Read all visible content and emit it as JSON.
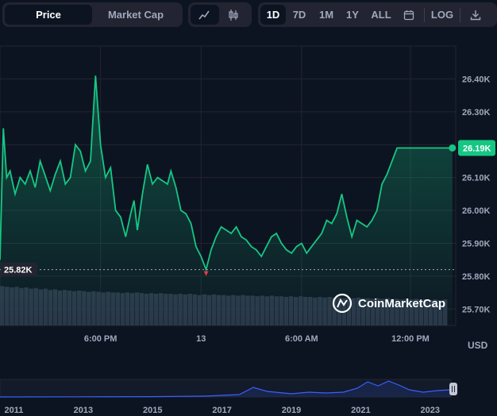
{
  "toolbar": {
    "metric_tabs": [
      {
        "label": "Price",
        "active": true
      },
      {
        "label": "Market Cap",
        "active": false
      }
    ],
    "chart_types": [
      {
        "icon": "line-chart-icon",
        "active": true
      },
      {
        "icon": "candlestick-icon",
        "active": false
      }
    ],
    "ranges": [
      {
        "label": "1D",
        "active": true
      },
      {
        "label": "7D",
        "active": false
      },
      {
        "label": "1M",
        "active": false
      },
      {
        "label": "1Y",
        "active": false
      },
      {
        "label": "ALL",
        "active": false
      }
    ],
    "calendar_icon": "calendar-icon",
    "log_label": "LOG",
    "download_icon": "download-icon"
  },
  "currency_label": "USD",
  "watermark": "CoinMarketCap",
  "colors": {
    "line": "#16c784",
    "volume": "#2b3548",
    "navigator": "#3861fb",
    "grid": "#222531",
    "low_marker": "#ea3943"
  },
  "chart_data": {
    "type": "line",
    "y_axis": {
      "ticks": [
        "26.40K",
        "26.30K",
        "26.20K",
        "26.10K",
        "26.00K",
        "25.90K",
        "25.80K",
        "25.70K"
      ],
      "tick_values": [
        26400,
        26300,
        26200,
        26100,
        26000,
        25900,
        25800,
        25700
      ],
      "range": [
        25650,
        26500
      ],
      "position": "right"
    },
    "x_axis": {
      "ticks": [
        "6:00 PM",
        "13",
        "6:00 AM",
        "12:00 PM"
      ],
      "tick_hours": [
        6,
        12,
        18,
        24.5
      ]
    },
    "x_range_hours": [
      0,
      27.2
    ],
    "current_price_label": "26.19K",
    "current_price": 26190,
    "min_price_label": "25.82K",
    "min_price": 25820,
    "series": [
      {
        "x": [
          0,
          0.2,
          0.4,
          0.6,
          0.9,
          1.2,
          1.5,
          1.8,
          2.1,
          2.4,
          2.8,
          3.0,
          3.3,
          3.6,
          3.9,
          4.2,
          4.5,
          4.8,
          5.1,
          5.4,
          5.7,
          6.0,
          6.3,
          6.6,
          6.9,
          7.2,
          7.5,
          7.8,
          8.0,
          8.2,
          8.5,
          8.8,
          9.1,
          9.4,
          9.7,
          10.0,
          10.2,
          10.5,
          10.8,
          11.1,
          11.4,
          11.7,
          12.0,
          12.3,
          12.6,
          12.9,
          13.2,
          13.5,
          13.8,
          14.1,
          14.4,
          14.7,
          15.0,
          15.3,
          15.6,
          15.9,
          16.2,
          16.5,
          16.8,
          17.1,
          17.4,
          17.7,
          18.0,
          18.3,
          18.6,
          18.9,
          19.2,
          19.5,
          19.8,
          20.1,
          20.4,
          20.7,
          21.0,
          21.3,
          21.6,
          21.9,
          22.2,
          22.5,
          22.8,
          23.1,
          23.4,
          23.7,
          24.0,
          24.3,
          24.6,
          24.9,
          25.2,
          25.5,
          25.8,
          26.1,
          26.4,
          26.7,
          27.0
        ],
        "values": [
          25850,
          26250,
          26100,
          26120,
          26050,
          26100,
          26080,
          26120,
          26070,
          26150,
          26090,
          26060,
          26110,
          26150,
          26080,
          26100,
          26200,
          26180,
          26120,
          26150,
          26410,
          26200,
          26100,
          26130,
          26000,
          25980,
          25920,
          25990,
          26030,
          25940,
          26050,
          26140,
          26080,
          26100,
          26090,
          26080,
          26120,
          26070,
          26000,
          25990,
          25960,
          25890,
          25860,
          25820,
          25880,
          25920,
          25950,
          25940,
          25930,
          25950,
          25920,
          25910,
          25890,
          25880,
          25860,
          25890,
          25920,
          25930,
          25900,
          25880,
          25870,
          25890,
          25900,
          25870,
          25890,
          25910,
          25930,
          25970,
          25960,
          25990,
          26050,
          25980,
          25920,
          25970,
          25960,
          25950,
          25970,
          26000,
          26080,
          26110,
          26150,
          26190,
          26190,
          26190,
          26190,
          26190,
          26190,
          26190,
          26190,
          26190,
          26190,
          26190,
          26190
        ]
      }
    ],
    "volume": {
      "values": [
        0.62,
        0.61,
        0.6,
        0.61,
        0.59,
        0.6,
        0.58,
        0.59,
        0.57,
        0.58,
        0.56,
        0.57,
        0.55,
        0.56,
        0.55,
        0.54,
        0.55,
        0.54,
        0.53,
        0.54,
        0.53,
        0.52,
        0.53,
        0.52,
        0.52,
        0.51,
        0.52,
        0.51,
        0.52,
        0.51,
        0.5,
        0.51,
        0.5,
        0.51,
        0.5,
        0.5,
        0.49,
        0.5,
        0.49,
        0.5,
        0.49,
        0.48,
        0.49,
        0.48,
        0.49,
        0.48,
        0.48,
        0.47,
        0.48,
        0.47,
        0.48,
        0.47,
        0.47,
        0.46,
        0.47,
        0.46,
        0.47,
        0.46,
        0.46,
        0.45,
        0.46,
        0.45,
        0.46,
        0.45,
        0.45,
        0.44,
        0.45,
        0.44,
        0.45,
        0.44,
        0.44,
        0.43,
        0.44,
        0.43,
        0.44,
        0.43,
        0.43,
        0.42,
        0.43,
        0.42,
        0.43,
        0.42,
        0.42,
        0.41,
        0.42,
        0.41,
        0.42,
        0.41,
        0.41,
        0.4,
        0.41,
        0.4,
        0.41
      ]
    },
    "navigator": {
      "ticks": [
        "2011",
        "2013",
        "2015",
        "2017",
        "2019",
        "2021",
        "2023"
      ],
      "tick_years": [
        2011,
        2013,
        2015,
        2017,
        2019,
        2021,
        2023
      ],
      "range_years": [
        2010.6,
        2023.6
      ],
      "series_years": [
        2010.6,
        2013.0,
        2015.0,
        2016.5,
        2017.5,
        2017.9,
        2018.3,
        2019.0,
        2019.5,
        2020.0,
        2020.5,
        2020.9,
        2021.2,
        2021.5,
        2021.8,
        2022.1,
        2022.4,
        2022.8,
        2023.2,
        2023.6
      ],
      "series_values": [
        0,
        0.01,
        0.02,
        0.05,
        0.15,
        0.6,
        0.35,
        0.2,
        0.3,
        0.25,
        0.3,
        0.55,
        0.95,
        0.7,
        1.0,
        0.75,
        0.45,
        0.3,
        0.4,
        0.45
      ]
    }
  }
}
